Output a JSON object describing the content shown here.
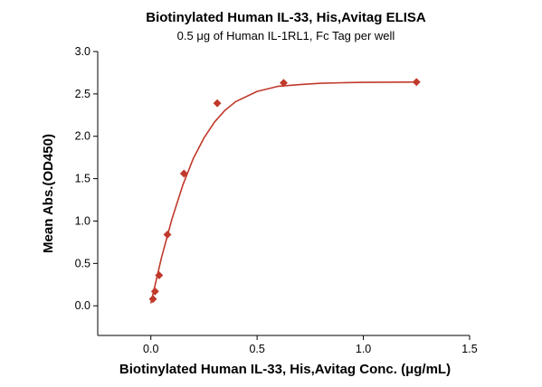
{
  "chart_data": {
    "type": "scatter",
    "title": "Biotinylated Human IL-33, His,Avitag ELISA",
    "subtitle": "0.5 μg of Human IL-1RL1, Fc Tag per well",
    "xlabel": "Biotinylated Human IL-33, His,Avitag Conc. (μg/mL)",
    "ylabel": "Mean Abs.(OD450)",
    "xlim": [
      -0.25,
      1.5
    ],
    "ylim": [
      -0.35,
      3.0
    ],
    "xticks": [
      "0.0",
      "0.5",
      "1.0",
      "1.5"
    ],
    "yticks": [
      "0.0",
      "0.5",
      "1.0",
      "1.5",
      "2.0",
      "2.5",
      "3.0"
    ],
    "grid": false,
    "series": [
      {
        "type": "scatter",
        "marker": "diamond",
        "x": [
          0.0098,
          0.0195,
          0.039,
          0.078,
          0.156,
          0.3125,
          0.625,
          1.25
        ],
        "y": [
          0.08,
          0.17,
          0.36,
          0.84,
          1.56,
          2.39,
          2.63,
          2.64
        ]
      },
      {
        "type": "line",
        "curve": "fitted",
        "x": [
          0.0,
          0.05,
          0.1,
          0.15,
          0.2,
          0.25,
          0.3,
          0.35,
          0.4,
          0.5,
          0.6,
          0.7,
          0.8,
          0.9,
          1.0,
          1.1,
          1.2,
          1.25
        ],
        "y": [
          0.03,
          0.57,
          1.03,
          1.42,
          1.74,
          1.98,
          2.17,
          2.31,
          2.41,
          2.53,
          2.59,
          2.61,
          2.625,
          2.632,
          2.636,
          2.638,
          2.639,
          2.64
        ]
      }
    ],
    "colors": {
      "data": "#c0392b",
      "axis": "#000000"
    }
  }
}
